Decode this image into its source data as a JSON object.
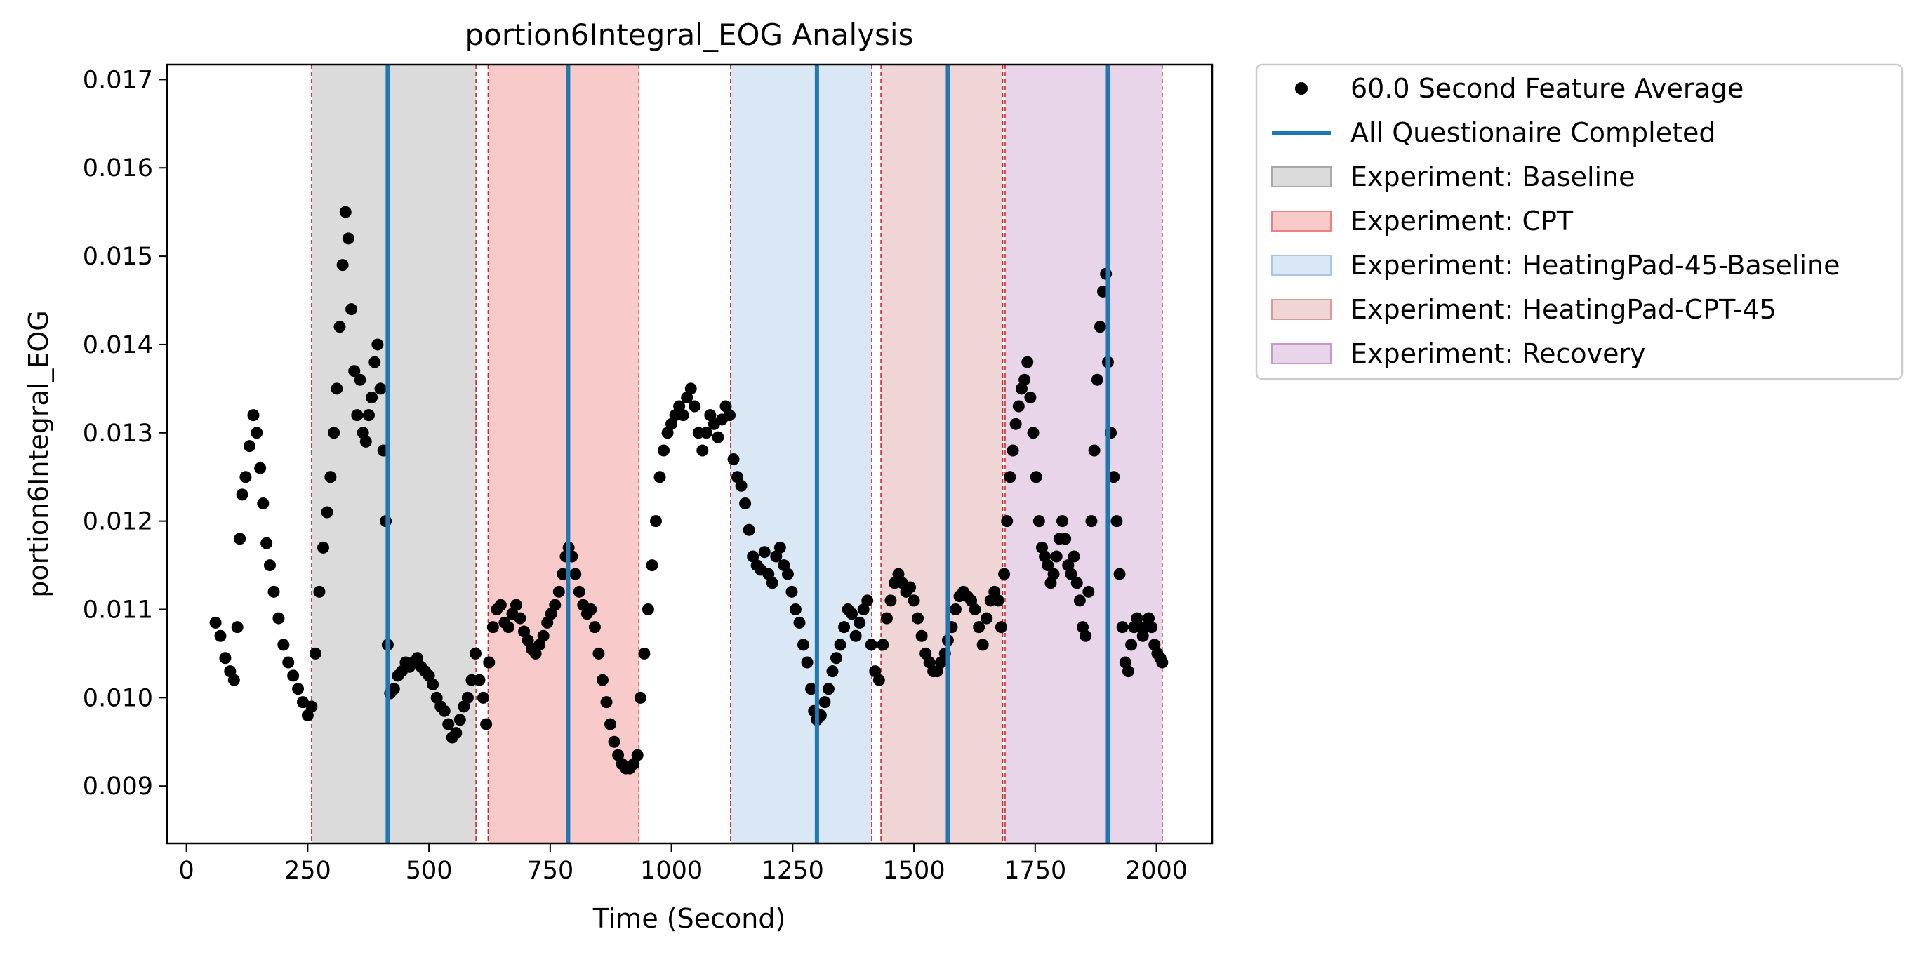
{
  "chart_data": {
    "type": "scatter",
    "title": "portion6Integral_EOG Analysis",
    "xlabel": "Time (Second)",
    "ylabel": "portion6Integral_EOG",
    "xlim": [
      -40,
      2115
    ],
    "ylim": [
      0.00835,
      0.01717
    ],
    "x_ticks": [
      0,
      250,
      500,
      750,
      1000,
      1250,
      1500,
      1750,
      2000
    ],
    "x_tick_labels": [
      "0",
      "250",
      "500",
      "750",
      "1000",
      "1250",
      "1500",
      "1750",
      "2000"
    ],
    "y_ticks": [
      0.009,
      0.01,
      0.011,
      0.012,
      0.013,
      0.014,
      0.015,
      0.016,
      0.017
    ],
    "y_tick_labels": [
      "0.009",
      "0.010",
      "0.011",
      "0.012",
      "0.013",
      "0.014",
      "0.015",
      "0.016",
      "0.017"
    ],
    "grid": false,
    "legend_position": "outside-right-top",
    "experiments": [
      {
        "name": "Experiment: Baseline",
        "color": "#a9a9a9",
        "spans": [
          [
            258,
            597
          ]
        ]
      },
      {
        "name": "Experiment: CPT",
        "color": "#f08080",
        "spans": [
          [
            622,
            933
          ]
        ]
      },
      {
        "name": "Experiment: HeatingPad-45-Baseline",
        "color": "#a6c8e6",
        "spans": [
          [
            1122,
            1413
          ]
        ]
      },
      {
        "name": "Experiment: HeatingPad-CPT-45",
        "color": "#d99a9a",
        "spans": [
          [
            1432,
            1683
          ]
        ]
      },
      {
        "name": "Experiment: Recovery",
        "color": "#c89acc",
        "spans": [
          [
            1688,
            2012
          ]
        ]
      }
    ],
    "red_dashed_lines": [
      258,
      597,
      622,
      933,
      1122,
      1413,
      1432,
      1683,
      1688,
      2012
    ],
    "questionnaire_lines": {
      "name": "All Questionaire Completed",
      "color": "#1f77b4",
      "x": [
        415,
        787,
        1300,
        1570,
        1900
      ]
    },
    "series": [
      {
        "name": "60.0 Second Feature Average",
        "color": "#000000",
        "points": [
          [
            60,
            0.01085
          ],
          [
            70,
            0.0107
          ],
          [
            80,
            0.01045
          ],
          [
            90,
            0.0103
          ],
          [
            98,
            0.0102
          ],
          [
            105,
            0.0108
          ],
          [
            110,
            0.0118
          ],
          [
            115,
            0.0123
          ],
          [
            122,
            0.0125
          ],
          [
            130,
            0.01285
          ],
          [
            138,
            0.0132
          ],
          [
            145,
            0.013
          ],
          [
            152,
            0.0126
          ],
          [
            158,
            0.0122
          ],
          [
            165,
            0.01175
          ],
          [
            172,
            0.0115
          ],
          [
            180,
            0.0112
          ],
          [
            190,
            0.0109
          ],
          [
            200,
            0.0106
          ],
          [
            210,
            0.0104
          ],
          [
            220,
            0.01025
          ],
          [
            230,
            0.0101
          ],
          [
            240,
            0.00995
          ],
          [
            250,
            0.0098
          ],
          [
            258,
            0.0099
          ],
          [
            266,
            0.0105
          ],
          [
            274,
            0.0112
          ],
          [
            282,
            0.0117
          ],
          [
            290,
            0.0121
          ],
          [
            297,
            0.0125
          ],
          [
            304,
            0.013
          ],
          [
            310,
            0.0135
          ],
          [
            316,
            0.0142
          ],
          [
            322,
            0.0149
          ],
          [
            328,
            0.0155
          ],
          [
            334,
            0.0152
          ],
          [
            340,
            0.0144
          ],
          [
            346,
            0.0137
          ],
          [
            352,
            0.0132
          ],
          [
            358,
            0.0136
          ],
          [
            364,
            0.013
          ],
          [
            370,
            0.0129
          ],
          [
            376,
            0.0132
          ],
          [
            382,
            0.0134
          ],
          [
            388,
            0.0138
          ],
          [
            394,
            0.014
          ],
          [
            400,
            0.0135
          ],
          [
            406,
            0.0128
          ],
          [
            411,
            0.012
          ],
          [
            415,
            0.0106
          ],
          [
            420,
            0.01005
          ],
          [
            428,
            0.0101
          ],
          [
            436,
            0.01025
          ],
          [
            444,
            0.0103
          ],
          [
            452,
            0.0104
          ],
          [
            460,
            0.01035
          ],
          [
            468,
            0.0104
          ],
          [
            476,
            0.01045
          ],
          [
            484,
            0.01035
          ],
          [
            492,
            0.0103
          ],
          [
            500,
            0.01025
          ],
          [
            508,
            0.01015
          ],
          [
            516,
            0.01
          ],
          [
            524,
            0.0099
          ],
          [
            532,
            0.00985
          ],
          [
            540,
            0.0097
          ],
          [
            548,
            0.00955
          ],
          [
            556,
            0.0096
          ],
          [
            564,
            0.00975
          ],
          [
            572,
            0.0099
          ],
          [
            580,
            0.01
          ],
          [
            588,
            0.0102
          ],
          [
            596,
            0.0105
          ],
          [
            604,
            0.0102
          ],
          [
            612,
            0.01
          ],
          [
            618,
            0.0097
          ],
          [
            624,
            0.0104
          ],
          [
            632,
            0.0108
          ],
          [
            640,
            0.011
          ],
          [
            648,
            0.01105
          ],
          [
            656,
            0.01085
          ],
          [
            664,
            0.0108
          ],
          [
            672,
            0.01095
          ],
          [
            680,
            0.01105
          ],
          [
            688,
            0.0109
          ],
          [
            696,
            0.01075
          ],
          [
            704,
            0.01065
          ],
          [
            712,
            0.01055
          ],
          [
            720,
            0.0105
          ],
          [
            728,
            0.0106
          ],
          [
            736,
            0.0107
          ],
          [
            744,
            0.01085
          ],
          [
            752,
            0.01095
          ],
          [
            760,
            0.01105
          ],
          [
            768,
            0.0112
          ],
          [
            776,
            0.0114
          ],
          [
            782,
            0.0116
          ],
          [
            788,
            0.0117
          ],
          [
            795,
            0.0116
          ],
          [
            802,
            0.0114
          ],
          [
            810,
            0.0112
          ],
          [
            818,
            0.01105
          ],
          [
            826,
            0.01095
          ],
          [
            834,
            0.011
          ],
          [
            842,
            0.0108
          ],
          [
            850,
            0.0105
          ],
          [
            858,
            0.0102
          ],
          [
            866,
            0.00995
          ],
          [
            874,
            0.0097
          ],
          [
            882,
            0.0095
          ],
          [
            890,
            0.00935
          ],
          [
            898,
            0.00925
          ],
          [
            906,
            0.0092
          ],
          [
            914,
            0.0092
          ],
          [
            922,
            0.00925
          ],
          [
            930,
            0.00935
          ],
          [
            936,
            0.01
          ],
          [
            944,
            0.0105
          ],
          [
            952,
            0.011
          ],
          [
            960,
            0.0115
          ],
          [
            968,
            0.012
          ],
          [
            976,
            0.0125
          ],
          [
            984,
            0.0128
          ],
          [
            992,
            0.013
          ],
          [
            1000,
            0.0131
          ],
          [
            1008,
            0.0132
          ],
          [
            1016,
            0.0133
          ],
          [
            1024,
            0.0132
          ],
          [
            1032,
            0.0134
          ],
          [
            1040,
            0.0135
          ],
          [
            1048,
            0.0133
          ],
          [
            1056,
            0.013
          ],
          [
            1064,
            0.0128
          ],
          [
            1072,
            0.013
          ],
          [
            1080,
            0.0132
          ],
          [
            1088,
            0.0131
          ],
          [
            1096,
            0.01295
          ],
          [
            1104,
            0.01315
          ],
          [
            1112,
            0.0133
          ],
          [
            1120,
            0.0132
          ],
          [
            1128,
            0.0127
          ],
          [
            1136,
            0.0125
          ],
          [
            1144,
            0.0124
          ],
          [
            1152,
            0.0122
          ],
          [
            1160,
            0.0119
          ],
          [
            1168,
            0.0116
          ],
          [
            1176,
            0.0115
          ],
          [
            1184,
            0.01145
          ],
          [
            1192,
            0.01165
          ],
          [
            1200,
            0.0114
          ],
          [
            1208,
            0.0113
          ],
          [
            1216,
            0.0116
          ],
          [
            1224,
            0.0117
          ],
          [
            1232,
            0.0115
          ],
          [
            1240,
            0.0114
          ],
          [
            1248,
            0.0112
          ],
          [
            1256,
            0.011
          ],
          [
            1264,
            0.01085
          ],
          [
            1272,
            0.0106
          ],
          [
            1280,
            0.0104
          ],
          [
            1288,
            0.0101
          ],
          [
            1294,
            0.00985
          ],
          [
            1300,
            0.00975
          ],
          [
            1308,
            0.0098
          ],
          [
            1316,
            0.00995
          ],
          [
            1324,
            0.0101
          ],
          [
            1332,
            0.0103
          ],
          [
            1340,
            0.01045
          ],
          [
            1348,
            0.0106
          ],
          [
            1356,
            0.0108
          ],
          [
            1364,
            0.011
          ],
          [
            1372,
            0.01095
          ],
          [
            1380,
            0.0107
          ],
          [
            1388,
            0.01085
          ],
          [
            1396,
            0.011
          ],
          [
            1404,
            0.0111
          ],
          [
            1412,
            0.0106
          ],
          [
            1420,
            0.0103
          ],
          [
            1428,
            0.0102
          ],
          [
            1436,
            0.0106
          ],
          [
            1444,
            0.0109
          ],
          [
            1452,
            0.0111
          ],
          [
            1460,
            0.0113
          ],
          [
            1468,
            0.0114
          ],
          [
            1476,
            0.0113
          ],
          [
            1484,
            0.0112
          ],
          [
            1492,
            0.01125
          ],
          [
            1500,
            0.0111
          ],
          [
            1508,
            0.0109
          ],
          [
            1516,
            0.0107
          ],
          [
            1524,
            0.0105
          ],
          [
            1532,
            0.0104
          ],
          [
            1540,
            0.0103
          ],
          [
            1548,
            0.0103
          ],
          [
            1556,
            0.0104
          ],
          [
            1564,
            0.0105
          ],
          [
            1570,
            0.01065
          ],
          [
            1578,
            0.0108
          ],
          [
            1586,
            0.011
          ],
          [
            1594,
            0.01115
          ],
          [
            1602,
            0.0112
          ],
          [
            1610,
            0.01115
          ],
          [
            1618,
            0.0111
          ],
          [
            1626,
            0.011
          ],
          [
            1634,
            0.0108
          ],
          [
            1642,
            0.0106
          ],
          [
            1650,
            0.0109
          ],
          [
            1658,
            0.0111
          ],
          [
            1666,
            0.0112
          ],
          [
            1674,
            0.0111
          ],
          [
            1680,
            0.0108
          ],
          [
            1686,
            0.0114
          ],
          [
            1692,
            0.012
          ],
          [
            1698,
            0.0125
          ],
          [
            1704,
            0.0128
          ],
          [
            1710,
            0.0131
          ],
          [
            1716,
            0.0133
          ],
          [
            1722,
            0.0135
          ],
          [
            1728,
            0.0136
          ],
          [
            1734,
            0.0138
          ],
          [
            1740,
            0.0134
          ],
          [
            1746,
            0.013
          ],
          [
            1752,
            0.0125
          ],
          [
            1758,
            0.012
          ],
          [
            1764,
            0.0117
          ],
          [
            1770,
            0.0116
          ],
          [
            1776,
            0.0115
          ],
          [
            1782,
            0.0113
          ],
          [
            1788,
            0.0114
          ],
          [
            1794,
            0.0116
          ],
          [
            1800,
            0.0118
          ],
          [
            1806,
            0.012
          ],
          [
            1812,
            0.0118
          ],
          [
            1818,
            0.0115
          ],
          [
            1824,
            0.0114
          ],
          [
            1830,
            0.0116
          ],
          [
            1836,
            0.0113
          ],
          [
            1842,
            0.0111
          ],
          [
            1848,
            0.0108
          ],
          [
            1854,
            0.0107
          ],
          [
            1860,
            0.0112
          ],
          [
            1866,
            0.012
          ],
          [
            1872,
            0.0128
          ],
          [
            1878,
            0.0136
          ],
          [
            1884,
            0.0142
          ],
          [
            1890,
            0.0146
          ],
          [
            1896,
            0.0148
          ],
          [
            1900,
            0.0138
          ],
          [
            1906,
            0.013
          ],
          [
            1912,
            0.0125
          ],
          [
            1918,
            0.012
          ],
          [
            1924,
            0.0114
          ],
          [
            1930,
            0.0108
          ],
          [
            1936,
            0.0104
          ],
          [
            1942,
            0.0103
          ],
          [
            1948,
            0.0106
          ],
          [
            1954,
            0.0108
          ],
          [
            1960,
            0.0109
          ],
          [
            1966,
            0.0108
          ],
          [
            1972,
            0.0107
          ],
          [
            1978,
            0.0108
          ],
          [
            1984,
            0.0109
          ],
          [
            1990,
            0.0108
          ],
          [
            1996,
            0.0106
          ],
          [
            2002,
            0.0105
          ],
          [
            2008,
            0.01045
          ],
          [
            2012,
            0.0104
          ]
        ]
      }
    ]
  },
  "legend": {
    "items": [
      {
        "label": "60.0 Second Feature Average",
        "kind": "marker",
        "color": "#000000"
      },
      {
        "label": "All Questionaire Completed",
        "kind": "line",
        "color": "#1f77b4"
      },
      {
        "label": "Experiment: Baseline",
        "kind": "patch",
        "color": "#a9a9a9"
      },
      {
        "label": "Experiment: CPT",
        "kind": "patch",
        "color": "#f08080"
      },
      {
        "label": "Experiment: HeatingPad-45-Baseline",
        "kind": "patch",
        "color": "#a6c8e6"
      },
      {
        "label": "Experiment: HeatingPad-CPT-45",
        "kind": "patch",
        "color": "#d99a9a"
      },
      {
        "label": "Experiment: Recovery",
        "kind": "patch",
        "color": "#c89acc"
      }
    ]
  }
}
